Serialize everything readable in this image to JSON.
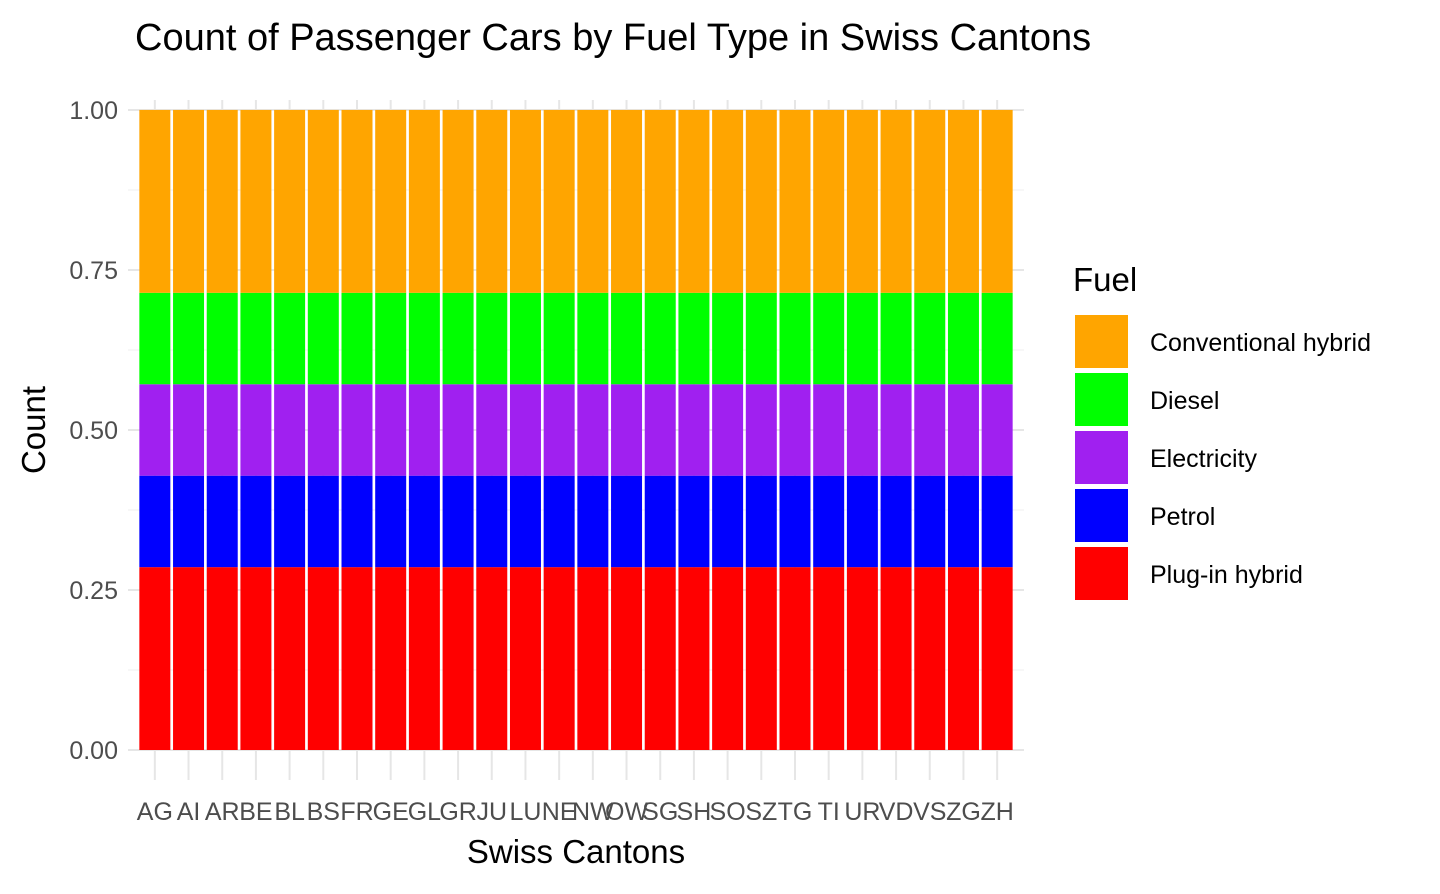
{
  "chart_data": {
    "type": "bar",
    "stacked": true,
    "title": "Count of Passenger Cars by Fuel Type in Swiss Cantons",
    "xlabel": "Swiss Cantons",
    "ylabel": "Count",
    "ylim": [
      0,
      1
    ],
    "yticks": [
      "0.00",
      "0.25",
      "0.50",
      "0.75",
      "1.00"
    ],
    "ytick_values": [
      0,
      0.25,
      0.5,
      0.75,
      1.0
    ],
    "grid": true,
    "legend_title": "Fuel",
    "legend_position": "right",
    "categories": [
      "AG",
      "AI",
      "AR",
      "BE",
      "BL",
      "BS",
      "FR",
      "GE",
      "GL",
      "GR",
      "JU",
      "LU",
      "NE",
      "NW",
      "OW",
      "SG",
      "SH",
      "SO",
      "SZ",
      "TG",
      "TI",
      "UR",
      "VD",
      "VS",
      "ZG",
      "ZH"
    ],
    "series": [
      {
        "name": "Plug-in hybrid",
        "color": "#ff0000",
        "values": [
          0.2857,
          0.2857,
          0.2857,
          0.2857,
          0.2857,
          0.2857,
          0.2857,
          0.2857,
          0.2857,
          0.2857,
          0.2857,
          0.2857,
          0.2857,
          0.2857,
          0.2857,
          0.2857,
          0.2857,
          0.2857,
          0.2857,
          0.2857,
          0.2857,
          0.2857,
          0.2857,
          0.2857,
          0.2857,
          0.2857
        ]
      },
      {
        "name": "Petrol",
        "color": "#0000ff",
        "values": [
          0.1429,
          0.1429,
          0.1429,
          0.1429,
          0.1429,
          0.1429,
          0.1429,
          0.1429,
          0.1429,
          0.1429,
          0.1429,
          0.1429,
          0.1429,
          0.1429,
          0.1429,
          0.1429,
          0.1429,
          0.1429,
          0.1429,
          0.1429,
          0.1429,
          0.1429,
          0.1429,
          0.1429,
          0.1429,
          0.1429
        ]
      },
      {
        "name": "Electricity",
        "color": "#a020f0",
        "values": [
          0.1429,
          0.1429,
          0.1429,
          0.1429,
          0.1429,
          0.1429,
          0.1429,
          0.1429,
          0.1429,
          0.1429,
          0.1429,
          0.1429,
          0.1429,
          0.1429,
          0.1429,
          0.1429,
          0.1429,
          0.1429,
          0.1429,
          0.1429,
          0.1429,
          0.1429,
          0.1429,
          0.1429,
          0.1429,
          0.1429
        ]
      },
      {
        "name": "Diesel",
        "color": "#00ff00",
        "values": [
          0.1429,
          0.1429,
          0.1429,
          0.1429,
          0.1429,
          0.1429,
          0.1429,
          0.1429,
          0.1429,
          0.1429,
          0.1429,
          0.1429,
          0.1429,
          0.1429,
          0.1429,
          0.1429,
          0.1429,
          0.1429,
          0.1429,
          0.1429,
          0.1429,
          0.1429,
          0.1429,
          0.1429,
          0.1429,
          0.1429
        ]
      },
      {
        "name": "Conventional hybrid",
        "color": "#ffa500",
        "values": [
          0.2857,
          0.2857,
          0.2857,
          0.2857,
          0.2857,
          0.2857,
          0.2857,
          0.2857,
          0.2857,
          0.2857,
          0.2857,
          0.2857,
          0.2857,
          0.2857,
          0.2857,
          0.2857,
          0.2857,
          0.2857,
          0.2857,
          0.2857,
          0.2857,
          0.2857,
          0.2857,
          0.2857,
          0.2857,
          0.2857
        ]
      }
    ],
    "legend_order": [
      "Conventional hybrid",
      "Diesel",
      "Electricity",
      "Petrol",
      "Plug-in hybrid"
    ]
  }
}
